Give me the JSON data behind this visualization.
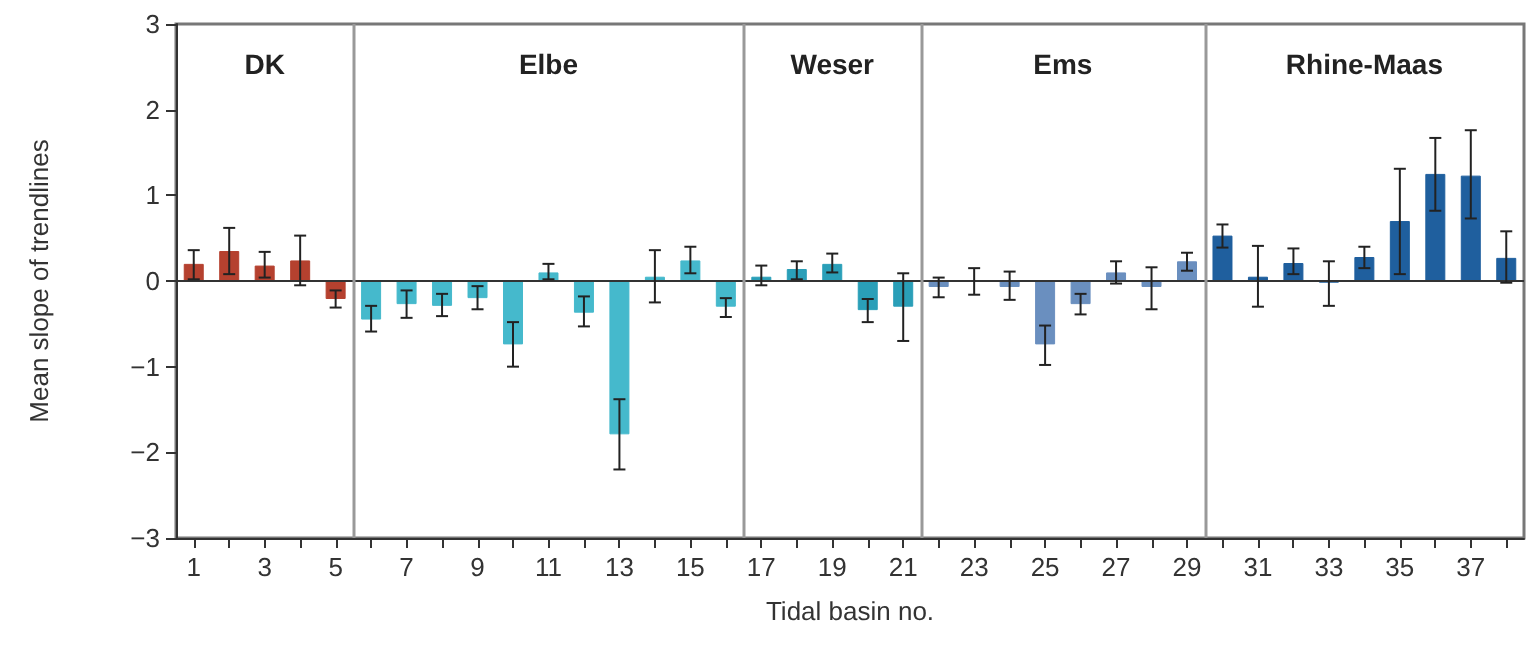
{
  "chart_data": {
    "type": "bar",
    "xlabel": "Tidal basin no.",
    "ylabel": "Mean slope of trendlines",
    "x": [
      1,
      2,
      3,
      4,
      5,
      6,
      7,
      8,
      9,
      10,
      11,
      12,
      13,
      14,
      15,
      16,
      17,
      18,
      19,
      20,
      21,
      22,
      23,
      24,
      25,
      26,
      27,
      28,
      29,
      30,
      31,
      32,
      33,
      34,
      35,
      36,
      37,
      38
    ],
    "values": [
      0.2,
      0.35,
      0.18,
      0.24,
      -0.21,
      -0.45,
      -0.27,
      -0.29,
      -0.2,
      -0.74,
      0.1,
      -0.37,
      -1.79,
      0.05,
      0.24,
      -0.3,
      0.05,
      0.14,
      0.2,
      -0.34,
      -0.3,
      -0.07,
      0,
      -0.07,
      -0.74,
      -0.27,
      0.1,
      -0.07,
      0.23,
      0.53,
      0.05,
      0.21,
      -0.02,
      0.28,
      0.7,
      1.25,
      1.23,
      0.27
    ],
    "errors": [
      [
        0.02,
        0.36
      ],
      [
        0.08,
        0.62
      ],
      [
        0.04,
        0.34
      ],
      [
        -0.05,
        0.53
      ],
      [
        -0.31,
        -0.11
      ],
      [
        -0.59,
        -0.29
      ],
      [
        -0.43,
        -0.11
      ],
      [
        -0.41,
        -0.15
      ],
      [
        -0.33,
        -0.06
      ],
      [
        -1.0,
        -0.48
      ],
      [
        0.02,
        0.2
      ],
      [
        -0.53,
        -0.18
      ],
      [
        -2.2,
        -1.38
      ],
      [
        -0.25,
        0.36
      ],
      [
        0.09,
        0.4
      ],
      [
        -0.42,
        -0.2
      ],
      [
        -0.05,
        0.18
      ],
      [
        0.02,
        0.23
      ],
      [
        0.1,
        0.32
      ],
      [
        -0.48,
        -0.21
      ],
      [
        -0.7,
        0.09
      ],
      [
        -0.19,
        0.04
      ],
      [
        -0.16,
        0.15
      ],
      [
        -0.22,
        0.11
      ],
      [
        -0.98,
        -0.52
      ],
      [
        -0.39,
        -0.15
      ],
      [
        -0.03,
        0.23
      ],
      [
        -0.33,
        0.16
      ],
      [
        0.12,
        0.33
      ],
      [
        0.39,
        0.66
      ],
      [
        -0.3,
        0.41
      ],
      [
        0.08,
        0.38
      ],
      [
        -0.29,
        0.23
      ],
      [
        0.15,
        0.4
      ],
      [
        0.08,
        1.31
      ],
      [
        0.82,
        1.67
      ],
      [
        0.73,
        1.76
      ],
      [
        -0.02,
        0.58
      ]
    ],
    "colors": [
      "#b5412f",
      "#b5412f",
      "#b5412f",
      "#b5412f",
      "#b5412f",
      "#45b9cc",
      "#45b9cc",
      "#45b9cc",
      "#45b9cc",
      "#45b9cc",
      "#45b9cc",
      "#45b9cc",
      "#45b9cc",
      "#45b9cc",
      "#45b9cc",
      "#45b9cc",
      "#2a9fb8",
      "#2a9fb8",
      "#2a9fb8",
      "#2a9fb8",
      "#2a9fb8",
      "#6a8fbf",
      "#6a8fbf",
      "#6a8fbf",
      "#6a8fbf",
      "#6a8fbf",
      "#6a8fbf",
      "#6a8fbf",
      "#6a8fbf",
      "#1f5f9e",
      "#1f5f9e",
      "#1f5f9e",
      "#1f5f9e",
      "#1f5f9e",
      "#1f5f9e",
      "#1f5f9e",
      "#1f5f9e",
      "#1f5f9e"
    ],
    "xlim": [
      0.5,
      38.5
    ],
    "xticks": [
      1,
      {
        "value": 2,
        "label": null
      },
      3,
      {
        "value": 4,
        "label": null
      },
      5,
      {
        "value": 6,
        "label": null
      },
      7,
      {
        "value": 8,
        "label": null
      },
      9,
      {
        "value": 10,
        "label": null
      },
      11,
      {
        "value": 12,
        "label": null
      },
      13,
      {
        "value": 14,
        "label": null
      },
      15,
      {
        "value": 16,
        "label": null
      },
      17,
      {
        "value": 18,
        "label": null
      },
      19,
      {
        "value": 20,
        "label": null
      },
      21,
      {
        "value": 22,
        "label": null
      },
      23,
      {
        "value": 24,
        "label": null
      },
      25,
      {
        "value": 26,
        "label": null
      },
      27,
      {
        "value": 28,
        "label": null
      },
      29,
      {
        "value": 30,
        "label": null
      },
      31,
      {
        "value": 32,
        "label": null
      },
      33,
      {
        "value": 34,
        "label": null
      },
      35,
      {
        "value": 36,
        "label": null
      },
      37,
      {
        "value": 38,
        "label": null
      }
    ],
    "ylim": [
      -3,
      3
    ],
    "yticks": [
      {
        "value": -3,
        "label": "−3"
      },
      {
        "value": -2,
        "label": "−2"
      },
      {
        "value": -1,
        "label": "−1"
      },
      0,
      1,
      2,
      3
    ],
    "ref_lines": [
      {
        "axis": "y",
        "value": 0,
        "color": "#333333"
      },
      {
        "axis": "x",
        "value": 5.5,
        "color": "#999999"
      },
      {
        "axis": "x",
        "value": 16.5,
        "color": "#999999"
      },
      {
        "axis": "x",
        "value": 21.5,
        "color": "#999999"
      },
      {
        "axis": "x",
        "value": 29.5,
        "color": "#999999"
      }
    ],
    "annotations": [
      "DK",
      "Elbe",
      "Weser",
      "Ems",
      "Rhine-Maas"
    ],
    "grid": false
  }
}
